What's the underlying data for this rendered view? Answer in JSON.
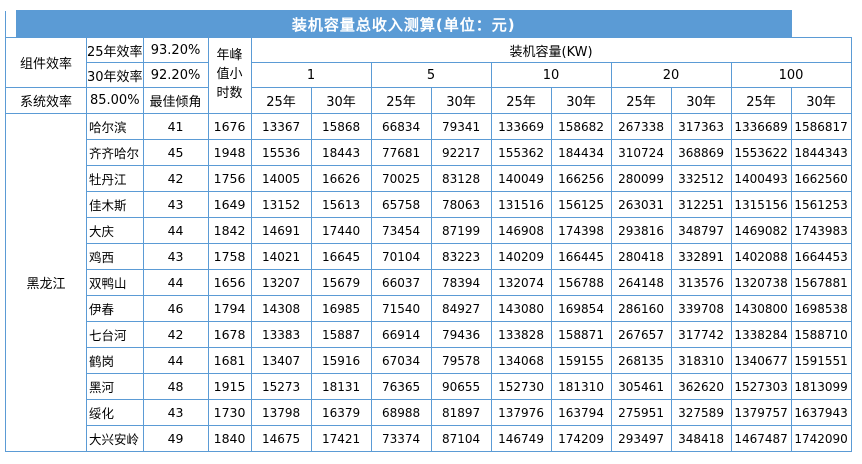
{
  "title": "装机容量总收入测算(单位：元)",
  "colors": {
    "accent_blue": "#5b9bd5",
    "grid_blue": "#5b9bd5",
    "title_text": "#ffffff",
    "cell_text": "#000000"
  },
  "header": {
    "component_efficiency_label": "组件效率",
    "efficiency_25_label": "25年效率",
    "efficiency_25_value": "93.20%",
    "efficiency_30_label": "30年效率",
    "efficiency_30_value": "92.20%",
    "system_efficiency_label": "系统效率",
    "system_efficiency_value": "85.00%",
    "best_tilt_label": "最佳倾角",
    "peak_hours_label": "年峰值小时数",
    "capacity_group_label": "装机容量(KW)",
    "capacities": [
      "1",
      "5",
      "10",
      "20",
      "100"
    ],
    "year_labels": [
      "25年",
      "30年"
    ]
  },
  "table": {
    "province": "黑龙江",
    "rows": [
      {
        "city": "哈尔滨",
        "tilt": "41",
        "peak_hours": "1676",
        "values": [
          "13367",
          "15868",
          "66834",
          "79341",
          "133669",
          "158682",
          "267338",
          "317363",
          "1336689",
          "1586817"
        ]
      },
      {
        "city": "齐齐哈尔",
        "tilt": "45",
        "peak_hours": "1948",
        "values": [
          "15536",
          "18443",
          "77681",
          "92217",
          "155362",
          "184434",
          "310724",
          "368869",
          "1553622",
          "1844343"
        ]
      },
      {
        "city": "牡丹江",
        "tilt": "42",
        "peak_hours": "1756",
        "values": [
          "14005",
          "16626",
          "70025",
          "83128",
          "140049",
          "166256",
          "280099",
          "332512",
          "1400493",
          "1662560"
        ]
      },
      {
        "city": "佳木斯",
        "tilt": "43",
        "peak_hours": "1649",
        "values": [
          "13152",
          "15613",
          "65758",
          "78063",
          "131516",
          "156125",
          "263031",
          "312251",
          "1315156",
          "1561253"
        ]
      },
      {
        "city": "大庆",
        "tilt": "44",
        "peak_hours": "1842",
        "values": [
          "14691",
          "17440",
          "73454",
          "87199",
          "146908",
          "174398",
          "293816",
          "348797",
          "1469082",
          "1743983"
        ]
      },
      {
        "city": "鸡西",
        "tilt": "43",
        "peak_hours": "1758",
        "values": [
          "14021",
          "16645",
          "70104",
          "83223",
          "140209",
          "166445",
          "280418",
          "332891",
          "1402088",
          "1664453"
        ]
      },
      {
        "city": "双鸭山",
        "tilt": "44",
        "peak_hours": "1656",
        "values": [
          "13207",
          "15679",
          "66037",
          "78394",
          "132074",
          "156788",
          "264148",
          "313576",
          "1320738",
          "1567881"
        ]
      },
      {
        "city": "伊春",
        "tilt": "46",
        "peak_hours": "1794",
        "values": [
          "14308",
          "16985",
          "71540",
          "84927",
          "143080",
          "169854",
          "286160",
          "339708",
          "1430800",
          "1698538"
        ]
      },
      {
        "city": "七台河",
        "tilt": "42",
        "peak_hours": "1678",
        "values": [
          "13383",
          "15887",
          "66914",
          "79436",
          "133828",
          "158871",
          "267657",
          "317742",
          "1338284",
          "1588710"
        ]
      },
      {
        "city": "鹤岗",
        "tilt": "44",
        "peak_hours": "1681",
        "values": [
          "13407",
          "15916",
          "67034",
          "79578",
          "134068",
          "159155",
          "268135",
          "318310",
          "1340677",
          "1591551"
        ]
      },
      {
        "city": "黑河",
        "tilt": "48",
        "peak_hours": "1915",
        "values": [
          "15273",
          "18131",
          "76365",
          "90655",
          "152730",
          "181310",
          "305461",
          "362620",
          "1527303",
          "1813099"
        ]
      },
      {
        "city": "绥化",
        "tilt": "43",
        "peak_hours": "1730",
        "values": [
          "13798",
          "16379",
          "68988",
          "81897",
          "137976",
          "163794",
          "275951",
          "327589",
          "1379757",
          "1637943"
        ]
      },
      {
        "city": "大兴安岭",
        "tilt": "49",
        "peak_hours": "1840",
        "values": [
          "14675",
          "17421",
          "73374",
          "87104",
          "146749",
          "174209",
          "293497",
          "348418",
          "1467487",
          "1742090"
        ]
      }
    ]
  }
}
